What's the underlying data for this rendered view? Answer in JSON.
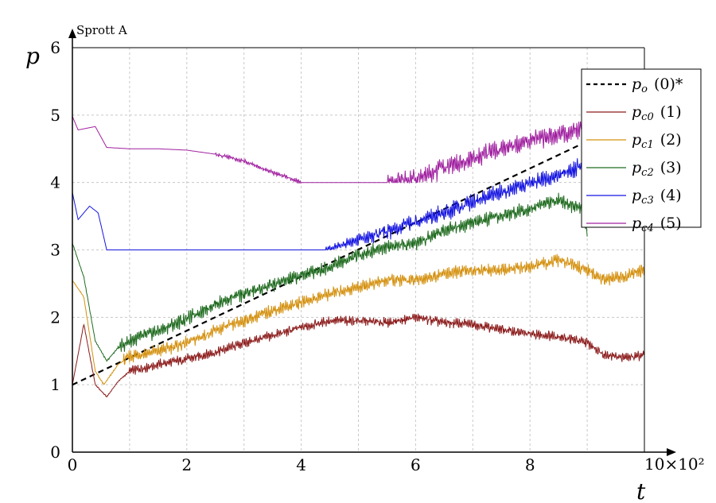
{
  "chart_data": {
    "type": "line",
    "title": "Sprott A",
    "xlabel": "t",
    "ylabel": "p",
    "x_multiplier": "10×10²",
    "xlim": [
      0,
      10
    ],
    "ylim": [
      0,
      6
    ],
    "x_ticks": [
      "0",
      "2",
      "4",
      "6",
      "8"
    ],
    "y_ticks": [
      "0",
      "1",
      "2",
      "3",
      "4",
      "5",
      "6"
    ],
    "grid": true,
    "legend_position": "top-right",
    "series": [
      {
        "name": "po (0)*",
        "symbol": "p",
        "sub": "o",
        "label": "(0)*",
        "color": "#000000",
        "dashed": true,
        "points": [
          [
            0,
            1.0
          ],
          [
            9.1,
            4.65
          ]
        ]
      },
      {
        "name": "pc0 (1)",
        "symbol": "p",
        "sub": "c0",
        "label": "(1)",
        "color": "#8b1a1a",
        "dashed": false,
        "points": [
          [
            0,
            1.0
          ],
          [
            0.2,
            1.9
          ],
          [
            0.4,
            1.0
          ],
          [
            0.6,
            0.82
          ],
          [
            0.8,
            1.05
          ],
          [
            1.0,
            1.2
          ],
          [
            1.5,
            1.3
          ],
          [
            2.0,
            1.38
          ],
          [
            2.5,
            1.48
          ],
          [
            3.0,
            1.62
          ],
          [
            3.5,
            1.73
          ],
          [
            4.0,
            1.85
          ],
          [
            4.5,
            1.95
          ],
          [
            5.0,
            1.95
          ],
          [
            5.5,
            1.92
          ],
          [
            6.0,
            2.0
          ],
          [
            6.5,
            1.92
          ],
          [
            7.0,
            1.9
          ],
          [
            7.5,
            1.82
          ],
          [
            8.0,
            1.75
          ],
          [
            8.5,
            1.72
          ],
          [
            9.0,
            1.62
          ],
          [
            9.3,
            1.45
          ],
          [
            9.7,
            1.4
          ],
          [
            10.0,
            1.45
          ]
        ]
      },
      {
        "name": "pc1 (2)",
        "symbol": "p",
        "sub": "c1",
        "label": "(2)",
        "color": "#d4900e",
        "dashed": false,
        "points": [
          [
            0,
            2.55
          ],
          [
            0.2,
            2.3
          ],
          [
            0.4,
            1.2
          ],
          [
            0.55,
            1.0
          ],
          [
            0.8,
            1.3
          ],
          [
            1.0,
            1.42
          ],
          [
            1.5,
            1.5
          ],
          [
            2.0,
            1.62
          ],
          [
            2.5,
            1.8
          ],
          [
            3.0,
            1.95
          ],
          [
            3.5,
            2.1
          ],
          [
            4.0,
            2.22
          ],
          [
            4.5,
            2.35
          ],
          [
            5.0,
            2.45
          ],
          [
            5.5,
            2.55
          ],
          [
            6.0,
            2.55
          ],
          [
            6.5,
            2.65
          ],
          [
            7.0,
            2.7
          ],
          [
            7.5,
            2.7
          ],
          [
            8.0,
            2.75
          ],
          [
            8.5,
            2.85
          ],
          [
            9.0,
            2.7
          ],
          [
            9.3,
            2.55
          ],
          [
            9.7,
            2.62
          ],
          [
            10.0,
            2.7
          ]
        ]
      },
      {
        "name": "pc2 (3)",
        "symbol": "p",
        "sub": "c2",
        "label": "(3)",
        "color": "#1e6a1e",
        "dashed": false,
        "points": [
          [
            0,
            3.1
          ],
          [
            0.2,
            2.6
          ],
          [
            0.4,
            1.65
          ],
          [
            0.6,
            1.35
          ],
          [
            0.8,
            1.55
          ],
          [
            1.0,
            1.65
          ],
          [
            1.5,
            1.8
          ],
          [
            2.0,
            1.98
          ],
          [
            2.5,
            2.2
          ],
          [
            3.0,
            2.35
          ],
          [
            3.5,
            2.48
          ],
          [
            4.0,
            2.62
          ],
          [
            4.5,
            2.75
          ],
          [
            5.0,
            2.92
          ],
          [
            5.5,
            3.05
          ],
          [
            6.0,
            3.1
          ],
          [
            6.5,
            3.3
          ],
          [
            7.0,
            3.4
          ],
          [
            7.5,
            3.5
          ],
          [
            8.0,
            3.62
          ],
          [
            8.5,
            3.75
          ],
          [
            8.9,
            3.6
          ],
          [
            9.0,
            3.3
          ]
        ]
      },
      {
        "name": "pc3 (4)",
        "symbol": "p",
        "sub": "c3",
        "label": "(4)",
        "color": "#1414e0",
        "dashed": false,
        "points": [
          [
            0,
            3.85
          ],
          [
            0.1,
            3.45
          ],
          [
            0.3,
            3.65
          ],
          [
            0.45,
            3.55
          ],
          [
            0.6,
            3.0
          ],
          [
            1.0,
            3.0
          ],
          [
            2.0,
            3.0
          ],
          [
            3.0,
            3.0
          ],
          [
            4.0,
            3.0
          ],
          [
            4.4,
            3.0
          ],
          [
            4.8,
            3.1
          ],
          [
            5.2,
            3.2
          ],
          [
            5.6,
            3.3
          ],
          [
            6.0,
            3.42
          ],
          [
            6.5,
            3.55
          ],
          [
            7.0,
            3.72
          ],
          [
            7.5,
            3.85
          ],
          [
            8.0,
            4.0
          ],
          [
            8.5,
            4.1
          ],
          [
            8.9,
            4.25
          ]
        ]
      },
      {
        "name": "pc4 (5)",
        "symbol": "p",
        "sub": "c4",
        "label": "(5)",
        "color": "#a020a0",
        "dashed": false,
        "points": [
          [
            0,
            4.98
          ],
          [
            0.1,
            4.78
          ],
          [
            0.4,
            4.83
          ],
          [
            0.6,
            4.52
          ],
          [
            1.0,
            4.5
          ],
          [
            1.5,
            4.5
          ],
          [
            2.0,
            4.48
          ],
          [
            2.5,
            4.42
          ],
          [
            3.0,
            4.32
          ],
          [
            3.5,
            4.15
          ],
          [
            4.0,
            4.0
          ],
          [
            4.5,
            4.0
          ],
          [
            5.0,
            4.0
          ],
          [
            5.5,
            4.0
          ],
          [
            6.0,
            4.05
          ],
          [
            6.5,
            4.22
          ],
          [
            7.0,
            4.35
          ],
          [
            7.5,
            4.5
          ],
          [
            8.0,
            4.62
          ],
          [
            8.5,
            4.7
          ],
          [
            8.9,
            4.82
          ]
        ]
      }
    ]
  }
}
